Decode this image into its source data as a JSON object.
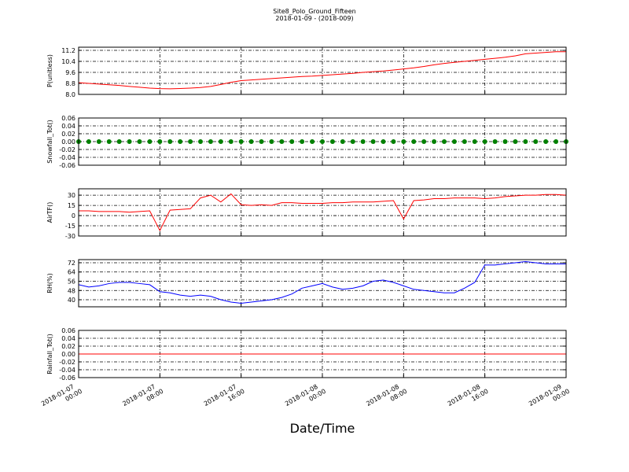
{
  "title": "Site8_Polo_Ground_Fifteen",
  "subtitle": "2018-01-09 - (2018-009)",
  "xlabel": "Date/Time",
  "xlim": [
    "2018-01-07 00:00",
    "2018-01-09 00:00"
  ],
  "xticks": [
    "2018-01-07 00:00",
    "2018-01-07 08:00",
    "2018-01-07 16:00",
    "2018-01-08 00:00",
    "2018-01-08 08:00",
    "2018-01-08 16:00",
    "2018-01-09 00:00"
  ],
  "x": [
    "2018-01-07 00:00",
    "2018-01-07 01:00",
    "2018-01-07 02:00",
    "2018-01-07 03:00",
    "2018-01-07 04:00",
    "2018-01-07 05:00",
    "2018-01-07 06:00",
    "2018-01-07 07:00",
    "2018-01-07 08:00",
    "2018-01-07 09:00",
    "2018-01-07 10:00",
    "2018-01-07 11:00",
    "2018-01-07 12:00",
    "2018-01-07 13:00",
    "2018-01-07 14:00",
    "2018-01-07 15:00",
    "2018-01-07 16:00",
    "2018-01-07 17:00",
    "2018-01-07 18:00",
    "2018-01-07 19:00",
    "2018-01-07 20:00",
    "2018-01-07 21:00",
    "2018-01-07 22:00",
    "2018-01-07 23:00",
    "2018-01-08 00:00",
    "2018-01-08 01:00",
    "2018-01-08 02:00",
    "2018-01-08 03:00",
    "2018-01-08 04:00",
    "2018-01-08 05:00",
    "2018-01-08 06:00",
    "2018-01-08 07:00",
    "2018-01-08 08:00",
    "2018-01-08 09:00",
    "2018-01-08 10:00",
    "2018-01-08 11:00",
    "2018-01-08 12:00",
    "2018-01-08 13:00",
    "2018-01-08 14:00",
    "2018-01-08 15:00",
    "2018-01-08 16:00",
    "2018-01-08 17:00",
    "2018-01-08 18:00",
    "2018-01-08 19:00",
    "2018-01-08 20:00",
    "2018-01-08 21:00",
    "2018-01-08 22:00",
    "2018-01-08 23:00",
    "2018-01-09 00:00"
  ],
  "chart_data": [
    {
      "type": "line",
      "ylabel": "P(unitless)",
      "grid": true,
      "ylim": [
        8.0,
        11.43
      ],
      "yticks": [
        {
          "value": 8,
          "label": "8.0"
        },
        8.8,
        9.6,
        10.4,
        11.2
      ],
      "series": [
        {
          "color": "#ff0000",
          "values": [
            8.85,
            8.8,
            8.75,
            8.7,
            8.65,
            8.58,
            8.52,
            8.46,
            8.42,
            8.41,
            8.43,
            8.46,
            8.5,
            8.58,
            8.72,
            8.88,
            9.0,
            9.05,
            9.1,
            9.15,
            9.2,
            9.25,
            9.3,
            9.33,
            9.38,
            9.43,
            9.48,
            9.53,
            9.6,
            9.65,
            9.7,
            9.77,
            9.85,
            9.93,
            10.03,
            10.15,
            10.25,
            10.33,
            10.4,
            10.47,
            10.55,
            10.62,
            10.7,
            10.8,
            10.95,
            11.0,
            11.05,
            11.1,
            11.1
          ]
        }
      ]
    },
    {
      "type": "scatter",
      "ylabel": "Snowfall_Tot()",
      "grid": true,
      "ylim": [
        -0.06,
        0.06
      ],
      "yticks": [
        -0.06,
        -0.04,
        -0.02,
        {
          "value": 0,
          "label": "0.00"
        },
        0.02,
        0.04,
        0.06
      ],
      "series": [
        {
          "color": "#008000",
          "values": [
            0,
            0,
            0,
            0,
            0,
            0,
            0,
            0,
            0,
            0,
            0,
            0,
            0,
            0,
            0,
            0,
            0,
            0,
            0,
            0,
            0,
            0,
            0,
            0,
            0,
            0,
            0,
            0,
            0,
            0,
            0,
            0,
            0,
            0,
            0,
            0,
            0,
            0,
            0,
            0,
            0,
            0,
            0,
            0,
            0,
            0,
            0,
            0,
            0
          ]
        }
      ]
    },
    {
      "type": "line",
      "ylabel": "AirTF()",
      "grid": true,
      "ylim": [
        -30,
        39.4
      ],
      "yticks": [
        -30,
        -15,
        0,
        15,
        30
      ],
      "series": [
        {
          "color": "#ff0000",
          "values": [
            7,
            7,
            6,
            6,
            6,
            5,
            6,
            7,
            -22,
            8,
            9,
            10,
            26,
            30,
            20,
            32,
            16,
            15,
            16,
            15,
            19,
            19,
            18,
            18,
            18,
            19,
            19,
            20,
            20,
            20,
            21,
            22,
            -5,
            22,
            23,
            25,
            25,
            26,
            26,
            26,
            25,
            26,
            28,
            29,
            30,
            30,
            31,
            31,
            30
          ]
        }
      ]
    },
    {
      "type": "line",
      "ylabel": "RH(%)",
      "grid": true,
      "ylim": [
        33.9,
        74.7
      ],
      "yticks": [
        40,
        48,
        56,
        64,
        72
      ],
      "series": [
        {
          "color": "#0000ff",
          "values": [
            53,
            51,
            52,
            54,
            55,
            55,
            54,
            53,
            47,
            46,
            44,
            43,
            44,
            43,
            40,
            38,
            37,
            38,
            39,
            40,
            42,
            45,
            50,
            52,
            54,
            51,
            49,
            50,
            52,
            56,
            57,
            55,
            52,
            49,
            48,
            47,
            46,
            46,
            50,
            55,
            70,
            70,
            71,
            72,
            73,
            72,
            71,
            71,
            71
          ]
        }
      ]
    },
    {
      "type": "line",
      "ylabel": "Rainfall_Tot()",
      "grid": true,
      "ylim": [
        -0.06,
        0.06
      ],
      "yticks": [
        -0.06,
        -0.04,
        -0.02,
        {
          "value": 0,
          "label": "0.00"
        },
        0.02,
        0.04,
        0.06
      ],
      "series": [
        {
          "color": "#ff0000",
          "values": [
            0,
            0,
            0,
            0,
            0,
            0,
            0,
            0,
            0,
            0,
            0,
            0,
            0,
            0,
            0,
            0,
            0,
            0,
            0,
            0,
            0,
            0,
            0,
            0,
            0,
            0,
            0,
            0,
            0,
            0,
            0,
            0,
            0,
            0,
            0,
            0,
            0,
            0,
            0,
            0,
            0,
            0,
            0,
            0,
            0,
            0,
            0,
            0,
            0
          ]
        }
      ]
    }
  ]
}
